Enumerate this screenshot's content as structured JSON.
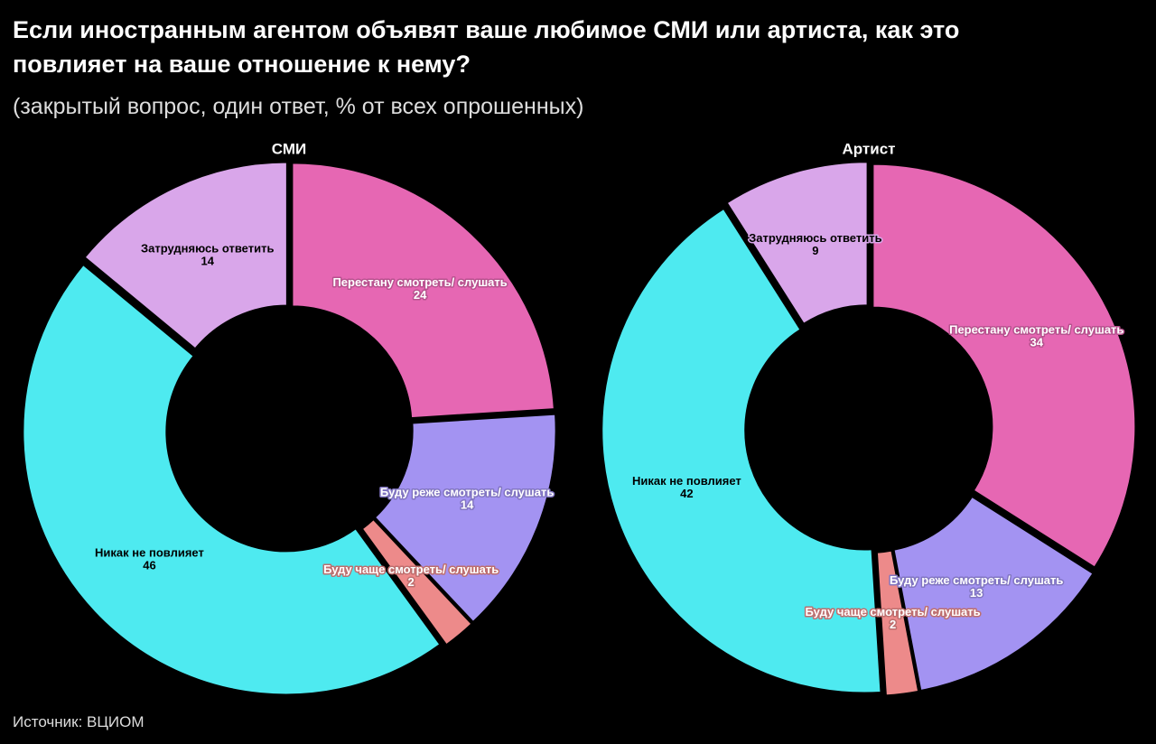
{
  "header": {
    "title": "Если иностранным агентом объявят ваше любимое СМИ или артиста, как это повлияет на ваше отношение к нему?",
    "subtitle": "(закрытый вопрос, один ответ, % от всех опрошенных)",
    "source": "Источник: ВЦИОМ"
  },
  "chart_data": [
    {
      "type": "donut",
      "title": "СМИ",
      "categories": [
        "Перестану смотреть/ слушать",
        "Буду реже смотреть/ слушать",
        "Буду чаще смотреть/ слушать",
        "Никак не повлияет",
        "Затрудняюсь ответить"
      ],
      "values": [
        24,
        14,
        2,
        46,
        14
      ],
      "colors": [
        "#e667b3",
        "#a393f2",
        "#ed8a8a",
        "#4eeaf0",
        "#d9a6ea"
      ]
    },
    {
      "type": "donut",
      "title": "Артист",
      "categories": [
        "Перестану смотреть/ слушать",
        "Буду реже смотреть/ слушать",
        "Буду чаще смотреть/ слушать",
        "Никак не повлияет",
        "Затрудняюсь ответить"
      ],
      "values": [
        34,
        13,
        2,
        42,
        9
      ],
      "colors": [
        "#e667b3",
        "#a393f2",
        "#ed8a8a",
        "#4eeaf0",
        "#d9a6ea"
      ]
    }
  ]
}
